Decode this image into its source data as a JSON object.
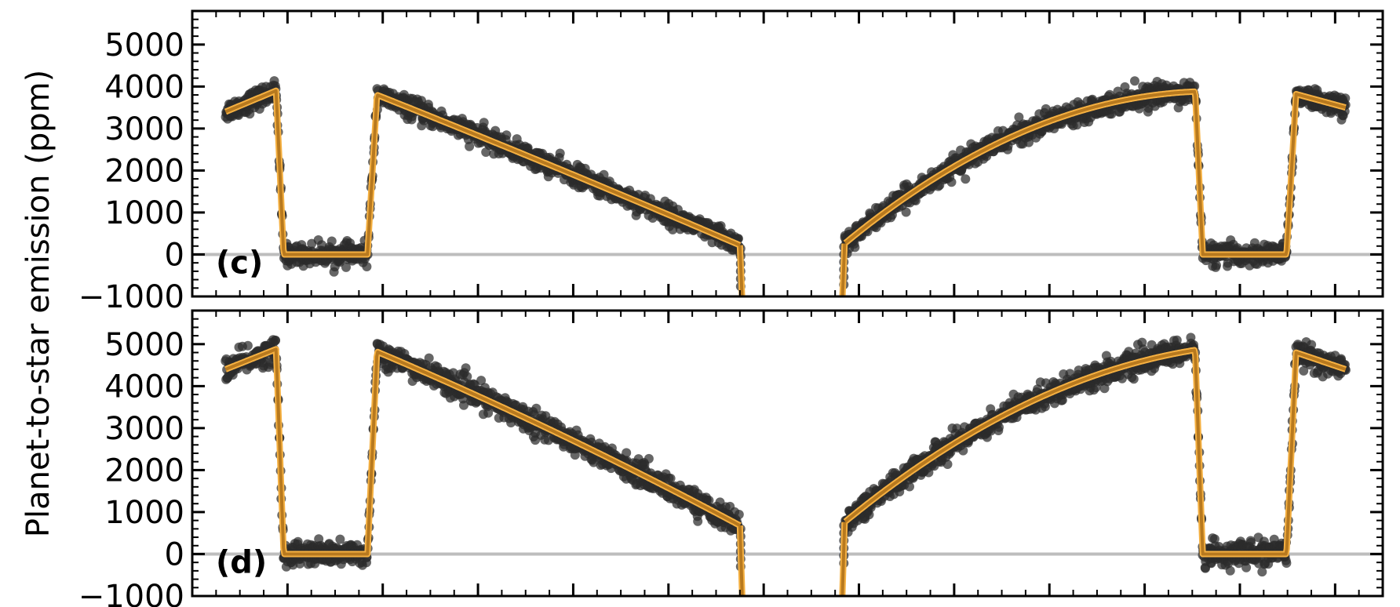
{
  "chart_data": {
    "type": "scatter",
    "ylabel": "Planet-to-star emission (ppm)",
    "colors": {
      "points": "#2b2b2b",
      "model_outer": "#f5b041",
      "model_inner": "#b7791f",
      "zero_line": "#bdbdbd",
      "axes": "#000000"
    },
    "panels": [
      {
        "label": "(c)",
        "ylim": [
          -1000,
          5800
        ],
        "yticks": [
          -1000,
          0,
          1000,
          2000,
          3000,
          4000,
          5000
        ],
        "ytick_labels": [
          "−1000",
          "0",
          "1000",
          "2000",
          "3000",
          "4000",
          "5000"
        ],
        "scatter_noise": 120,
        "model": {
          "left_wing": [
            [
              0.035,
              3400
            ],
            [
              0.088,
              3900
            ]
          ],
          "eclipse1": [
            0.088,
            0.096,
            0.184,
            0.194
          ],
          "descending": [
            [
              0.194,
              3800
            ],
            [
              0.4,
              1900
            ],
            [
              0.575,
              220
            ]
          ],
          "transit_edge_left": [
            0.575,
            0.578
          ],
          "transit_edge_right": [
            0.682,
            0.685
          ],
          "ascending": [
            [
              0.685,
              260
            ],
            [
              0.86,
              2800
            ],
            [
              1.053,
              3880
            ]
          ],
          "eclipse2": [
            1.053,
            1.061,
            1.149,
            1.159
          ],
          "right_wing": [
            [
              1.159,
              3820
            ],
            [
              1.211,
              3500
            ]
          ],
          "eclipse_floor": 0
        }
      },
      {
        "label": "(d)",
        "ylim": [
          -1000,
          5800
        ],
        "yticks": [
          -1000,
          0,
          1000,
          2000,
          3000,
          4000,
          5000
        ],
        "ytick_labels": [
          "−1000",
          "0",
          "1000",
          "2000",
          "3000",
          "4000",
          "5000"
        ],
        "scatter_noise": 140,
        "model": {
          "left_wing": [
            [
              0.035,
              4400
            ],
            [
              0.088,
              4880
            ]
          ],
          "eclipse1": [
            0.088,
            0.096,
            0.184,
            0.194
          ],
          "descending": [
            [
              0.194,
              4820
            ],
            [
              0.4,
              2700
            ],
            [
              0.575,
              680
            ]
          ],
          "transit_edge_left": [
            0.575,
            0.578
          ],
          "transit_edge_right": [
            0.682,
            0.685
          ],
          "ascending": [
            [
              0.685,
              760
            ],
            [
              0.86,
              3400
            ],
            [
              1.053,
              4860
            ]
          ],
          "eclipse2": [
            1.053,
            1.061,
            1.149,
            1.159
          ],
          "right_wing": [
            [
              1.159,
              4800
            ],
            [
              1.211,
              4400
            ]
          ],
          "eclipse_floor": 0
        }
      }
    ]
  }
}
